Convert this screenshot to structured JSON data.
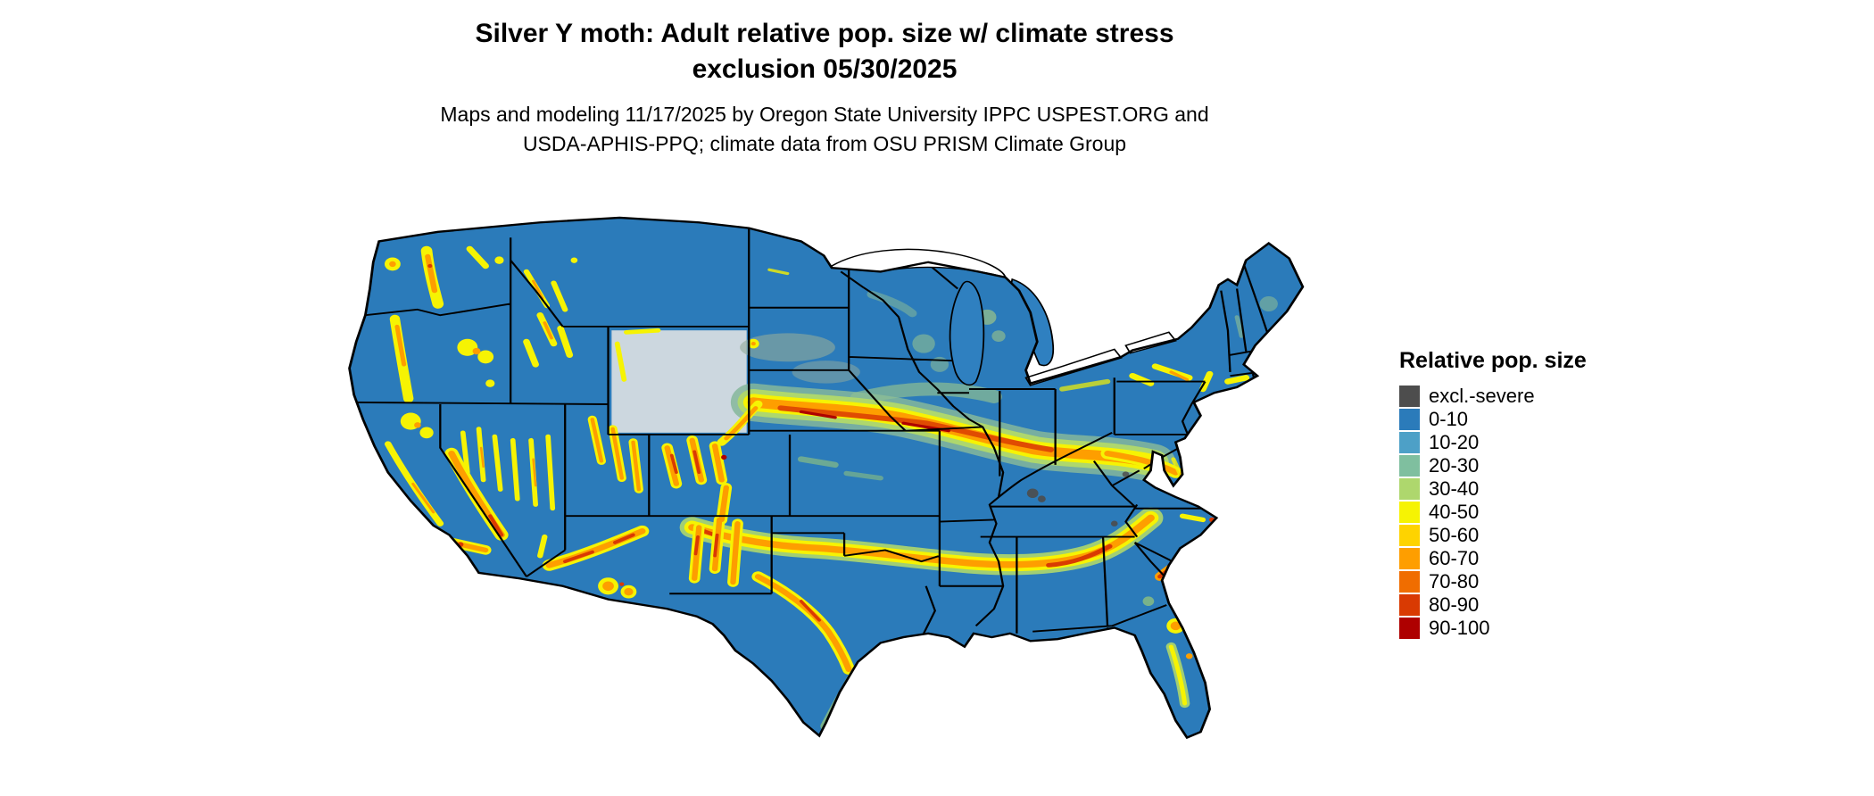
{
  "title": {
    "line1": "Silver Y moth: Adult relative pop. size w/ climate stress",
    "line2": "exclusion 05/30/2025"
  },
  "subtitle": {
    "line1": "Maps and modeling 11/17/2025 by Oregon State University IPPC USPEST.ORG and",
    "line2": "USDA-APHIS-PPQ; climate data from OSU PRISM Climate Group"
  },
  "legend": {
    "title": "Relative pop. size",
    "items": [
      {
        "label": "excl.-severe",
        "color": "#4d4d4d"
      },
      {
        "label": "0-10",
        "color": "#2b7bba"
      },
      {
        "label": "10-20",
        "color": "#4da0c7"
      },
      {
        "label": "20-30",
        "color": "#7fbf9f"
      },
      {
        "label": "30-40",
        "color": "#aed76d"
      },
      {
        "label": "40-50",
        "color": "#f6f303"
      },
      {
        "label": "50-60",
        "color": "#fed300"
      },
      {
        "label": "60-70",
        "color": "#fe9e00"
      },
      {
        "label": "70-80",
        "color": "#f06d00"
      },
      {
        "label": "80-90",
        "color": "#d93a02"
      },
      {
        "label": "90-100",
        "color": "#ae0000"
      }
    ]
  },
  "map": {
    "region": "Continental United States",
    "base_value_class": "0-10",
    "base_color": "#2b7bba"
  }
}
